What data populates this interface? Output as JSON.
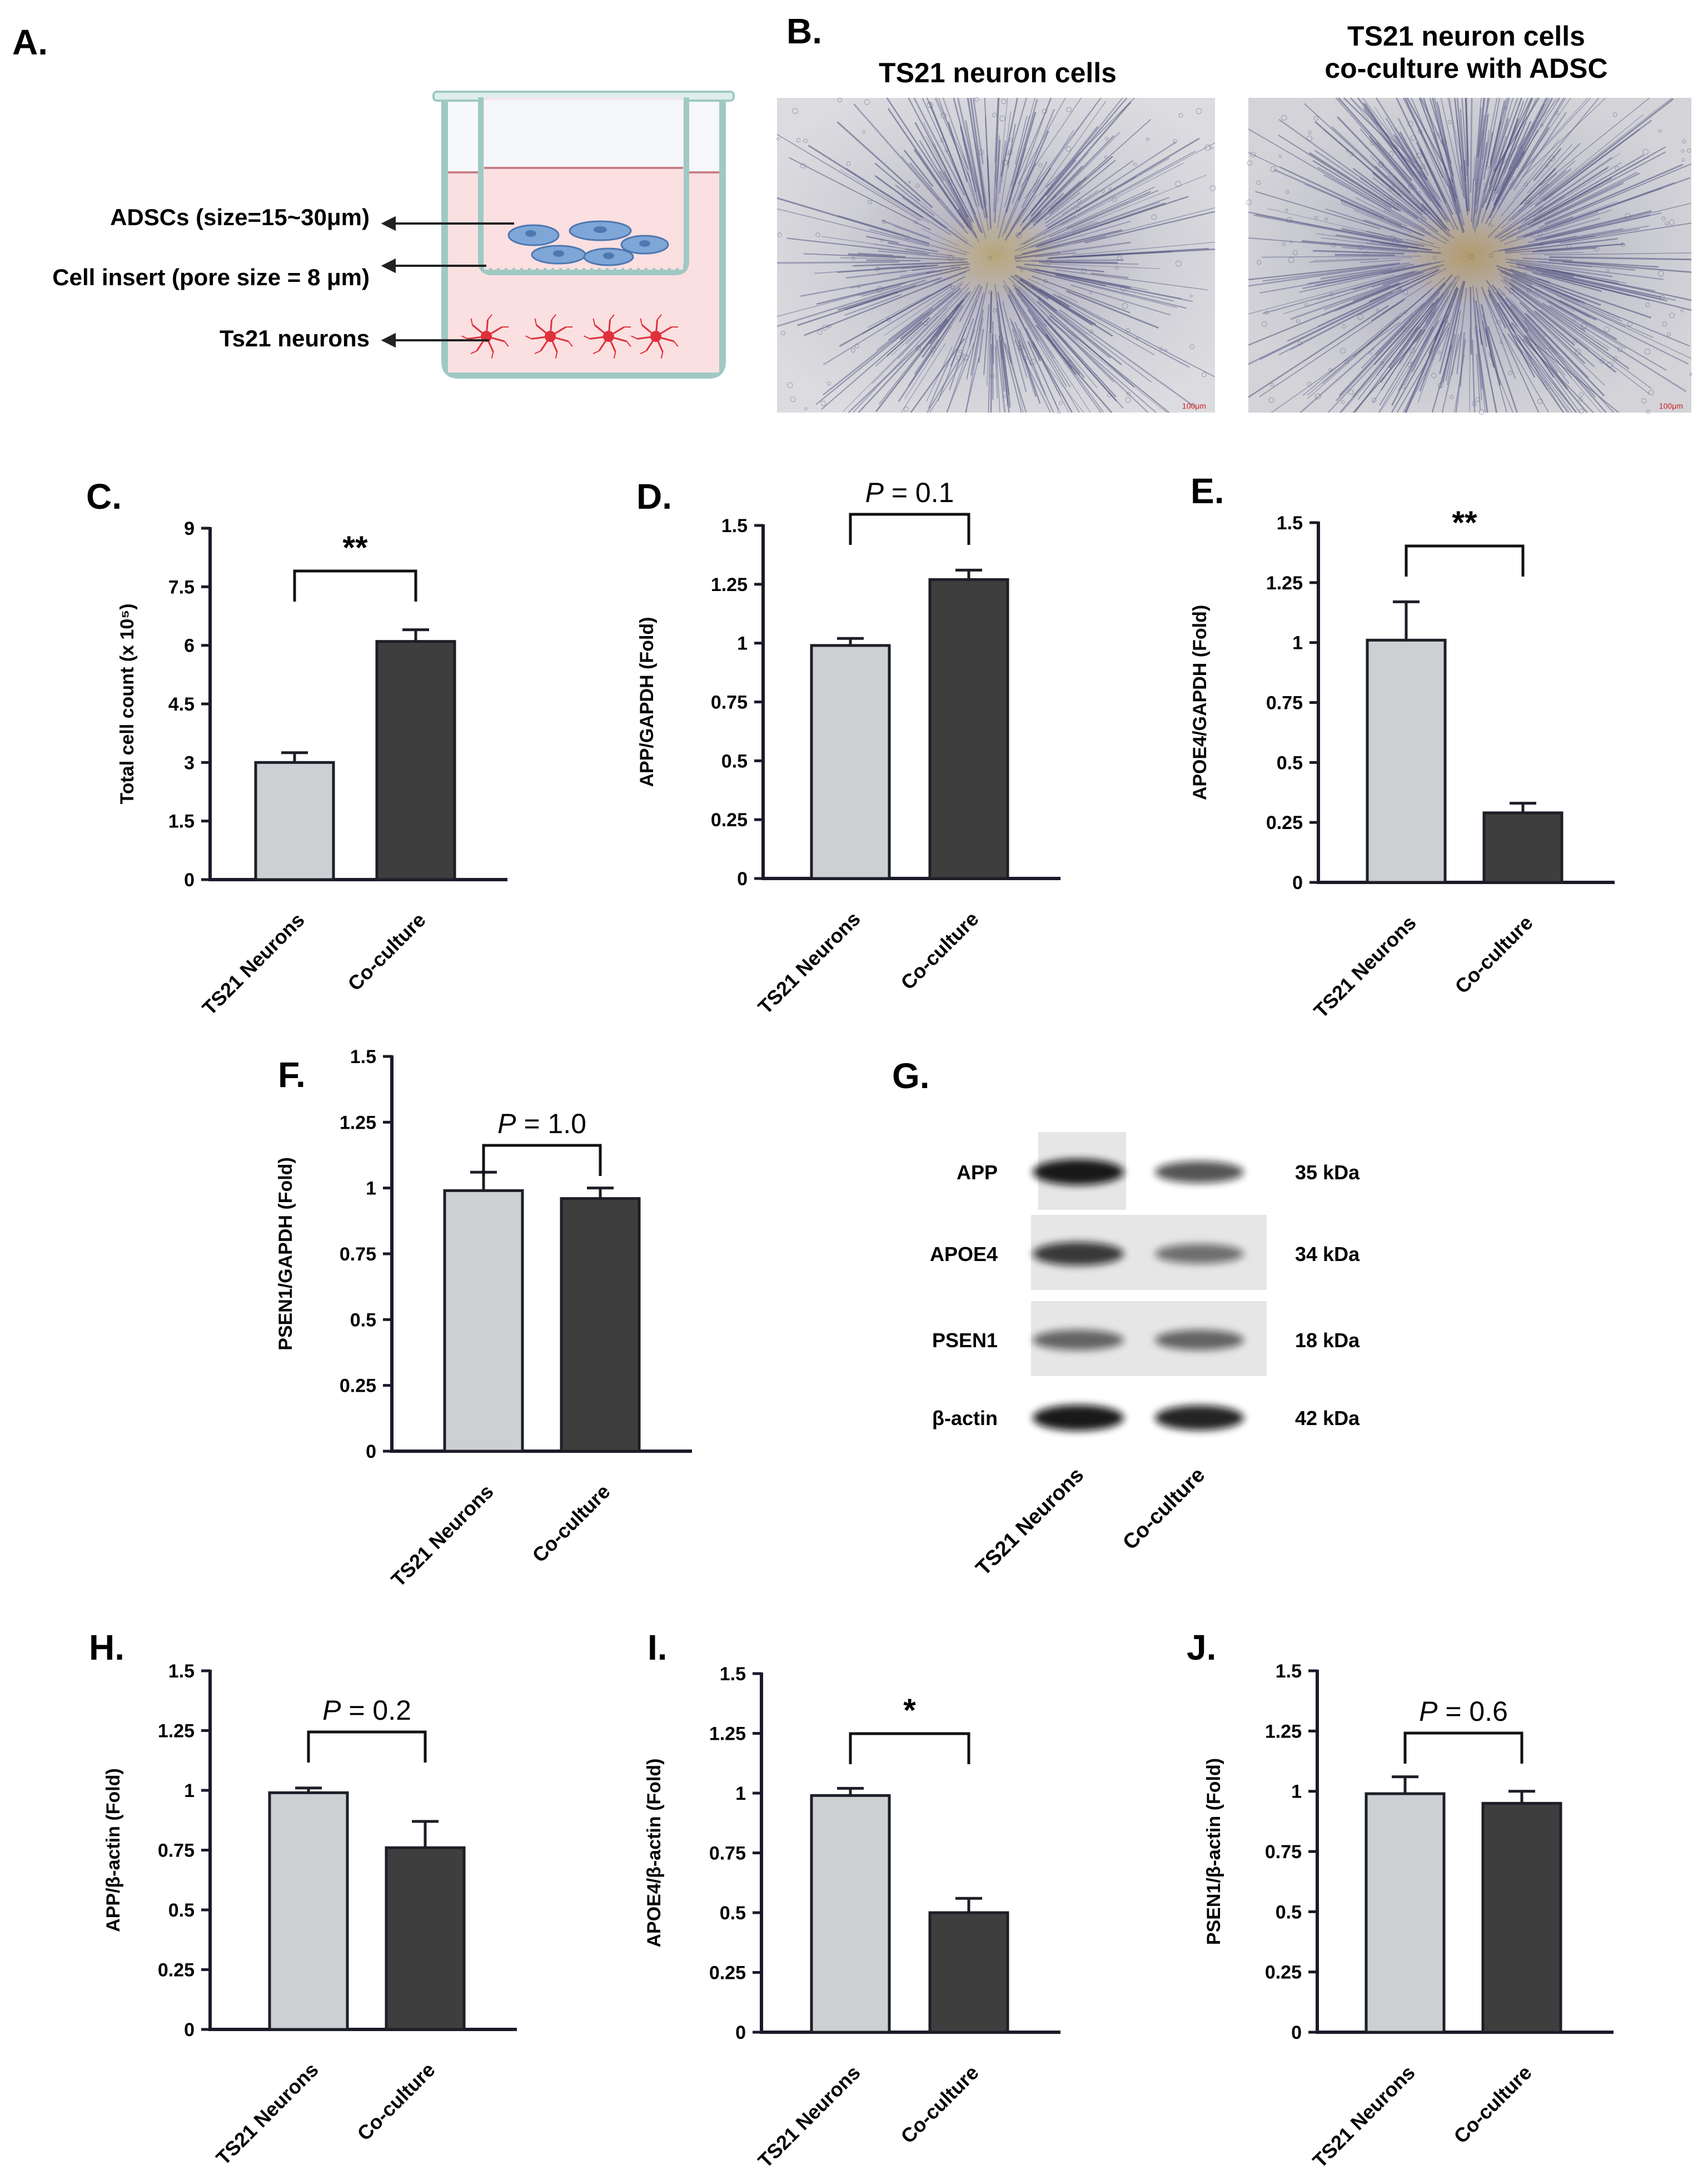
{
  "panels": {
    "A": {
      "letter": "A.",
      "labels": [
        "ADSCs (size=15~30μm)",
        "Cell insert (pore size = 8 μm)",
        "Ts21 neurons"
      ]
    },
    "B": {
      "letter": "B.",
      "left_title": "TS21 neuron cells",
      "right_title_line1": "TS21 neuron cells",
      "right_title_line2": "co-culture with ADSC",
      "scale_left": "100μm",
      "scale_right": "100μm"
    },
    "G": {
      "letter": "G.",
      "rows": [
        {
          "protein": "APP",
          "kda": "35 kDa",
          "band1": 0.95,
          "band2": 0.7
        },
        {
          "protein": "APOE4",
          "kda": "34 kDa",
          "band1": 0.8,
          "band2": 0.55
        },
        {
          "protein": "PSEN1",
          "kda": "18 kDa",
          "band1": 0.6,
          "band2": 0.6
        },
        {
          "protein": "β-actin",
          "kda": "42 kDa",
          "band1": 0.95,
          "band2": 0.9
        }
      ],
      "lanes": [
        "TS21 Neurons",
        "Co-culture"
      ]
    }
  },
  "colors": {
    "light_bar": "#cdd0d2",
    "dark_bar": "#3e3e3e",
    "axis": "#1a1a2a"
  },
  "chart_data": [
    {
      "id": "C",
      "letter": "C.",
      "type": "bar",
      "categories": [
        "TS21 Neurons",
        "Co-culture"
      ],
      "values": [
        3.0,
        6.1
      ],
      "errors": [
        0.25,
        0.3
      ],
      "ylabel": "Total cell count (x 10⁵)",
      "ylim": [
        0,
        9
      ],
      "ticks": [
        "0",
        "1.5",
        "3",
        "4.5",
        "6",
        "7.5",
        "9"
      ],
      "tick_values": [
        0,
        1.5,
        3,
        4.5,
        6,
        7.5,
        9
      ],
      "sig": "**",
      "sig_italic": false
    },
    {
      "id": "D",
      "letter": "D.",
      "type": "bar",
      "categories": [
        "TS21 Neurons",
        "Co-culture"
      ],
      "values": [
        0.99,
        1.27
      ],
      "errors": [
        0.03,
        0.04
      ],
      "ylabel": "APP/GAPDH (Fold)",
      "ylim": [
        0,
        1.5
      ],
      "ticks": [
        "0",
        "0.25",
        "0.5",
        "0.75",
        "1",
        "1.25",
        "1.5"
      ],
      "tick_values": [
        0,
        0.25,
        0.5,
        0.75,
        1,
        1.25,
        1.5
      ],
      "sig": "= 0.1",
      "sig_italic": true
    },
    {
      "id": "E",
      "letter": "E.",
      "type": "bar",
      "categories": [
        "TS21 Neurons",
        "Co-culture"
      ],
      "values": [
        1.01,
        0.29
      ],
      "errors": [
        0.16,
        0.04
      ],
      "ylabel": "APOE4/GAPDH (Fold)",
      "ylim": [
        0,
        1.5
      ],
      "ticks": [
        "0",
        "0.25",
        "0.5",
        "0.75",
        "1",
        "1.25",
        "1.5"
      ],
      "tick_values": [
        0,
        0.25,
        0.5,
        0.75,
        1,
        1.25,
        1.5
      ],
      "sig": "**",
      "sig_italic": false
    },
    {
      "id": "F",
      "letter": "F.",
      "type": "bar",
      "categories": [
        "TS21 Neurons",
        "Co-culture"
      ],
      "values": [
        0.99,
        0.96
      ],
      "errors": [
        0.07,
        0.04
      ],
      "ylabel": "PSEN1/GAPDH (Fold)",
      "ylim": [
        0,
        1.5
      ],
      "ticks": [
        "0",
        "0.25",
        "0.5",
        "0.75",
        "1",
        "1.25",
        "1.5"
      ],
      "tick_values": [
        0,
        0.25,
        0.5,
        0.75,
        1,
        1.25,
        1.5
      ],
      "sig": "= 1.0",
      "sig_italic": true
    },
    {
      "id": "H",
      "letter": "H.",
      "type": "bar",
      "categories": [
        "TS21 Neurons",
        "Co-culture"
      ],
      "values": [
        0.99,
        0.76
      ],
      "errors": [
        0.02,
        0.11
      ],
      "ylabel": "APP/β-actin (Fold)",
      "ylim": [
        0,
        1.5
      ],
      "ticks": [
        "0",
        "0.25",
        "0.5",
        "0.75",
        "1",
        "1.25",
        "1.5"
      ],
      "tick_values": [
        0,
        0.25,
        0.5,
        0.75,
        1,
        1.25,
        1.5
      ],
      "sig": "= 0.2",
      "sig_italic": true
    },
    {
      "id": "I",
      "letter": "I.",
      "type": "bar",
      "categories": [
        "TS21 Neurons",
        "Co-culture"
      ],
      "values": [
        0.99,
        0.5
      ],
      "errors": [
        0.03,
        0.06
      ],
      "ylabel": "APOE4/β-actin (Fold)",
      "ylim": [
        0,
        1.5
      ],
      "ticks": [
        "0",
        "0.25",
        "0.5",
        "0.75",
        "1",
        "1.25",
        "1.5"
      ],
      "tick_values": [
        0,
        0.25,
        0.5,
        0.75,
        1,
        1.25,
        1.5
      ],
      "sig": "*",
      "sig_italic": false
    },
    {
      "id": "J",
      "letter": "J.",
      "type": "bar",
      "categories": [
        "TS21 Neurons",
        "Co-culture"
      ],
      "values": [
        0.99,
        0.95
      ],
      "errors": [
        0.07,
        0.05
      ],
      "ylabel": "PSEN1/β-actin (Fold)",
      "ylim": [
        0,
        1.5
      ],
      "ticks": [
        "0",
        "0.25",
        "0.5",
        "0.75",
        "1",
        "1.25",
        "1.5"
      ],
      "tick_values": [
        0,
        0.25,
        0.5,
        0.75,
        1,
        1.25,
        1.5
      ],
      "sig": "= 0.6",
      "sig_italic": true
    }
  ]
}
